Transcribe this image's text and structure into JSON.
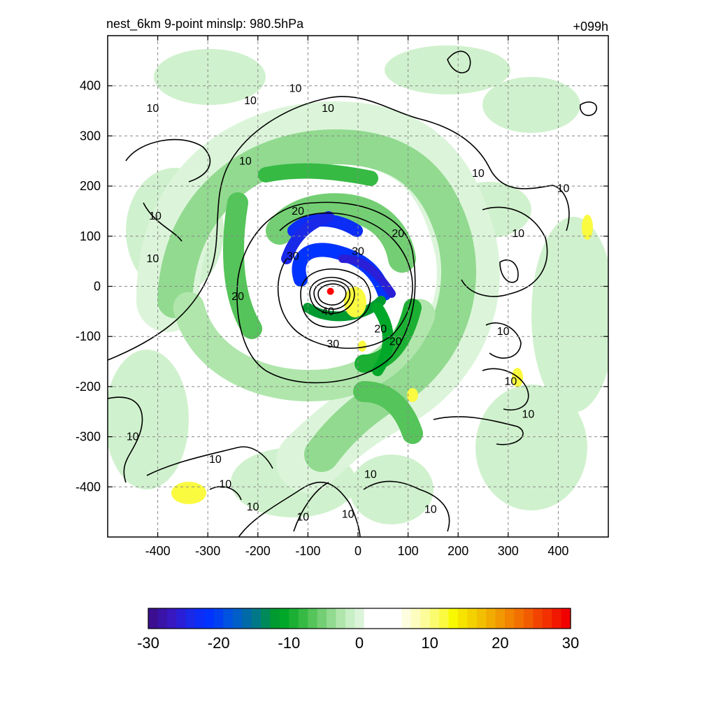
{
  "header": {
    "title": "nest_6km  9-point minslp: 980.5hPa",
    "forecast_hour": "+099h"
  },
  "chart_data": {
    "type": "heatmap",
    "title": "nest_6km  9-point minslp: 980.5hPa",
    "time_label": "+099h",
    "xlim": [
      -500,
      500
    ],
    "ylim": [
      -500,
      500
    ],
    "x_ticks": [
      -400,
      -300,
      -200,
      -100,
      0,
      100,
      200,
      300,
      400
    ],
    "y_ticks": [
      -400,
      -300,
      -200,
      -100,
      0,
      100,
      200,
      300,
      400
    ],
    "x_tick_labels": [
      "-400",
      "-300",
      "-200",
      "-100",
      "0",
      "100",
      "200",
      "300",
      "400"
    ],
    "y_tick_labels": [
      "400",
      "300",
      "200",
      "100",
      "0",
      "-100",
      "-200",
      "-300",
      "-400"
    ],
    "grid": "dashed",
    "colorbar": {
      "range": [
        -30,
        30
      ],
      "ticks": [
        -30,
        -20,
        -10,
        0,
        10,
        20,
        30
      ],
      "tick_labels": [
        "-30",
        "-20",
        "-10",
        "0",
        "10",
        "20",
        "30"
      ],
      "colors": [
        "#3b0f8f",
        "#3a13a8",
        "#3818c0",
        "#2a1fd6",
        "#1a28e8",
        "#0b2df6",
        "#0033ff",
        "#0040f0",
        "#0052e0",
        "#005ec8",
        "#006aa8",
        "#007888",
        "#008a5a",
        "#009a30",
        "#00a82a",
        "#1bb033",
        "#36ba44",
        "#55c45a",
        "#74cf74",
        "#92da90",
        "#b0e6ac",
        "#c8efc5",
        "#dcf5da",
        "#ffffff",
        "#ffffff",
        "#ffffff",
        "#ffffff",
        "#fdfde0",
        "#fdfdc0",
        "#fcfc9a",
        "#fbfb70",
        "#fafa40",
        "#f8f800",
        "#f6e400",
        "#f4d200",
        "#f2c000",
        "#f2ac00",
        "#f29800",
        "#f28400",
        "#f27000",
        "#f25c00",
        "#f24400",
        "#f23000",
        "#f21800",
        "#f20000"
      ]
    },
    "contour_labels": [
      {
        "text": "10",
        "x": -410,
        "y": 355
      },
      {
        "text": "10",
        "x": -225,
        "y": 250
      },
      {
        "text": "10",
        "x": -405,
        "y": 140
      },
      {
        "text": "10",
        "x": -410,
        "y": 55
      },
      {
        "text": "10",
        "x": -215,
        "y": 370
      },
      {
        "text": "10",
        "x": -125,
        "y": 395
      },
      {
        "text": "10",
        "x": -60,
        "y": 355
      },
      {
        "text": "10",
        "x": 240,
        "y": 225
      },
      {
        "text": "10",
        "x": 410,
        "y": 195
      },
      {
        "text": "10",
        "x": 320,
        "y": 105
      },
      {
        "text": "20",
        "x": -120,
        "y": 150
      },
      {
        "text": "20",
        "x": 80,
        "y": 105
      },
      {
        "text": "20",
        "x": -240,
        "y": -20
      },
      {
        "text": "20",
        "x": 45,
        "y": -85
      },
      {
        "text": "20",
        "x": 75,
        "y": -110
      },
      {
        "text": "30",
        "x": -130,
        "y": 60
      },
      {
        "text": "30",
        "x": 0,
        "y": 70
      },
      {
        "text": "30",
        "x": -50,
        "y": -115
      },
      {
        "text": "40",
        "x": -60,
        "y": -50
      },
      {
        "text": "10",
        "x": 290,
        "y": -90
      },
      {
        "text": "10",
        "x": 305,
        "y": -190
      },
      {
        "text": "10",
        "x": 340,
        "y": -255
      },
      {
        "text": "10",
        "x": -450,
        "y": -300
      },
      {
        "text": "10",
        "x": -285,
        "y": -345
      },
      {
        "text": "10",
        "x": -265,
        "y": -395
      },
      {
        "text": "10",
        "x": -210,
        "y": -440
      },
      {
        "text": "10",
        "x": -110,
        "y": -460
      },
      {
        "text": "10",
        "x": -20,
        "y": -455
      },
      {
        "text": "10",
        "x": 145,
        "y": -445
      },
      {
        "text": "10",
        "x": 25,
        "y": -375
      }
    ],
    "minimum_pressure_center": {
      "x": -55,
      "y": -10,
      "color": "#ff0000"
    }
  }
}
